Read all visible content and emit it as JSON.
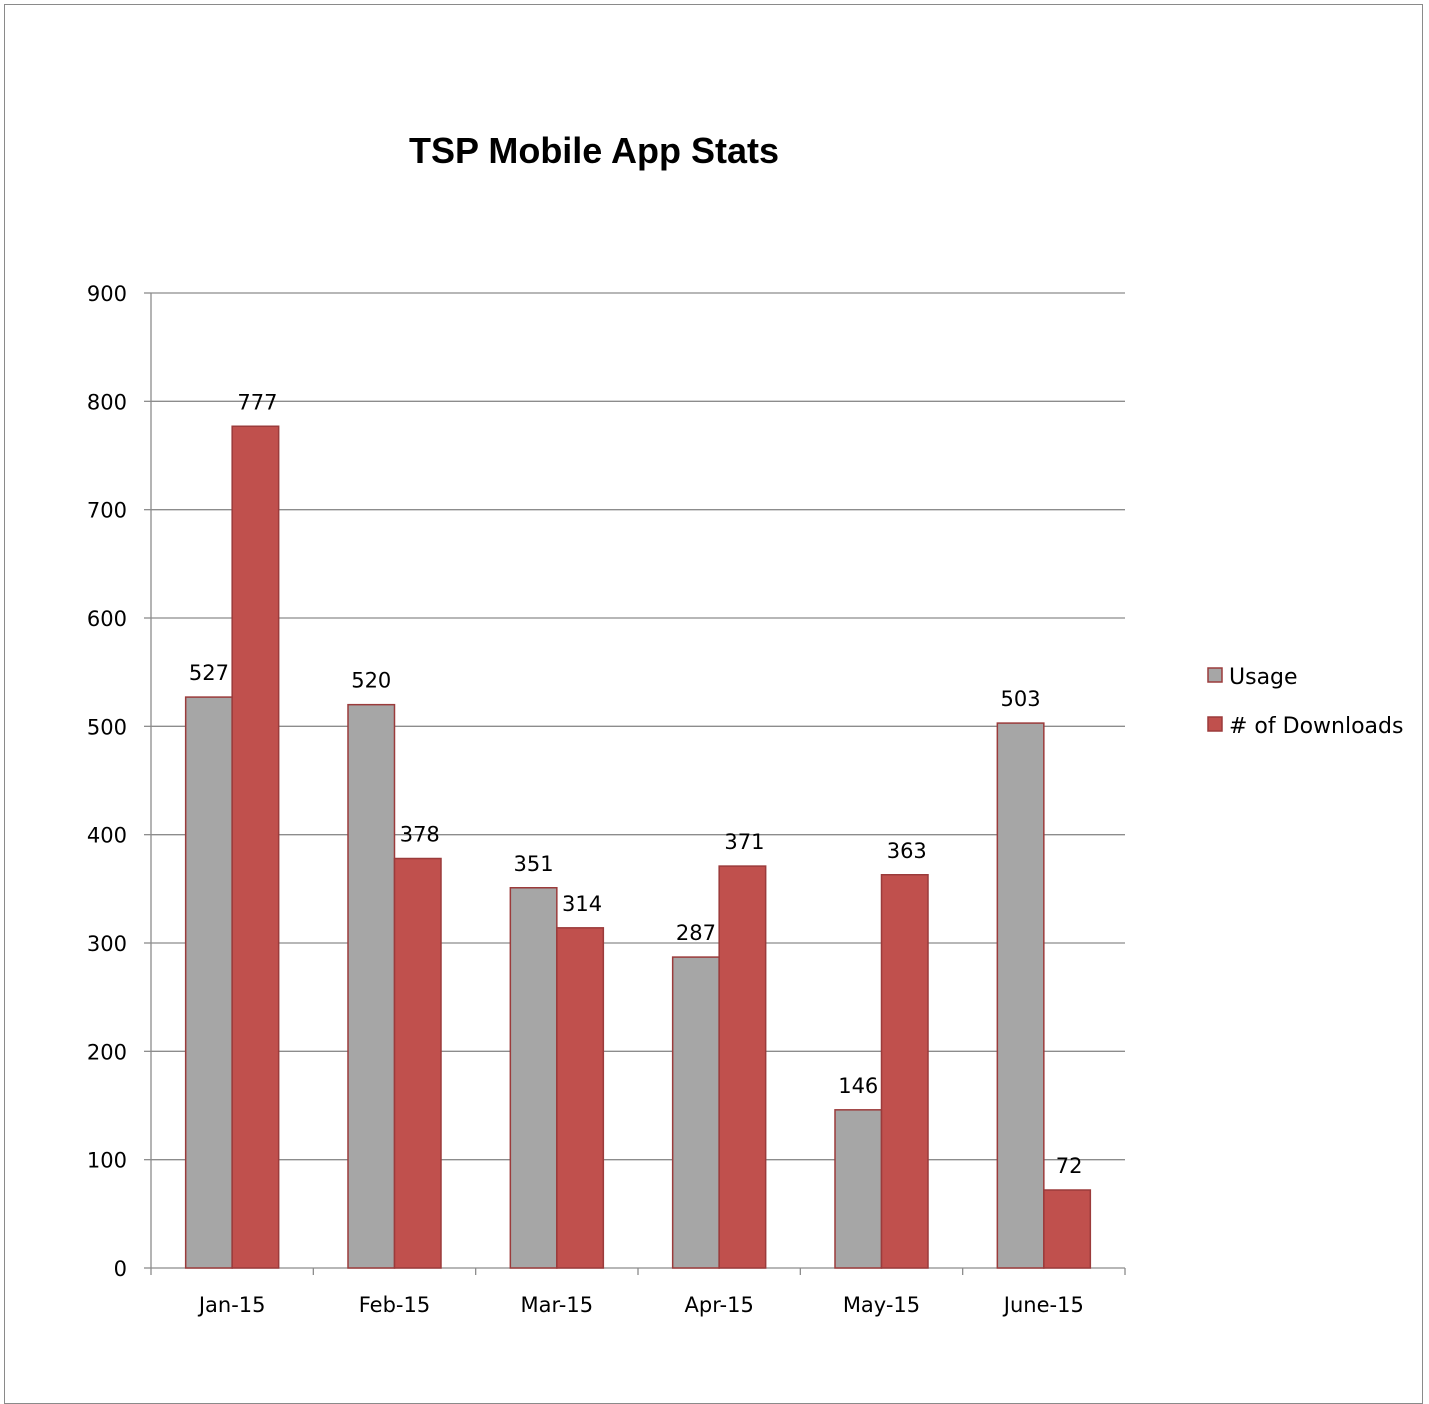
{
  "chart_data": {
    "type": "bar",
    "title": "TSP Mobile App Stats",
    "xlabel": "",
    "ylabel": "",
    "categories": [
      "Jan-15",
      "Feb-15",
      "Mar-15",
      "Apr-15",
      "May-15",
      "June-15"
    ],
    "series": [
      {
        "name": "Usage",
        "values": [
          527,
          520,
          351,
          287,
          146,
          503
        ],
        "color": "#a6a6a6",
        "stroke": "#9b3b3b"
      },
      {
        "name": "# of Downloads",
        "values": [
          777,
          378,
          314,
          371,
          363,
          72
        ],
        "color": "#c0504d",
        "stroke": "#9b3b3b"
      }
    ],
    "ylim": [
      0,
      900
    ],
    "yticks": [
      0,
      100,
      200,
      300,
      400,
      500,
      600,
      700,
      800,
      900
    ],
    "grid": true,
    "legend": "right",
    "data_labels": true
  }
}
